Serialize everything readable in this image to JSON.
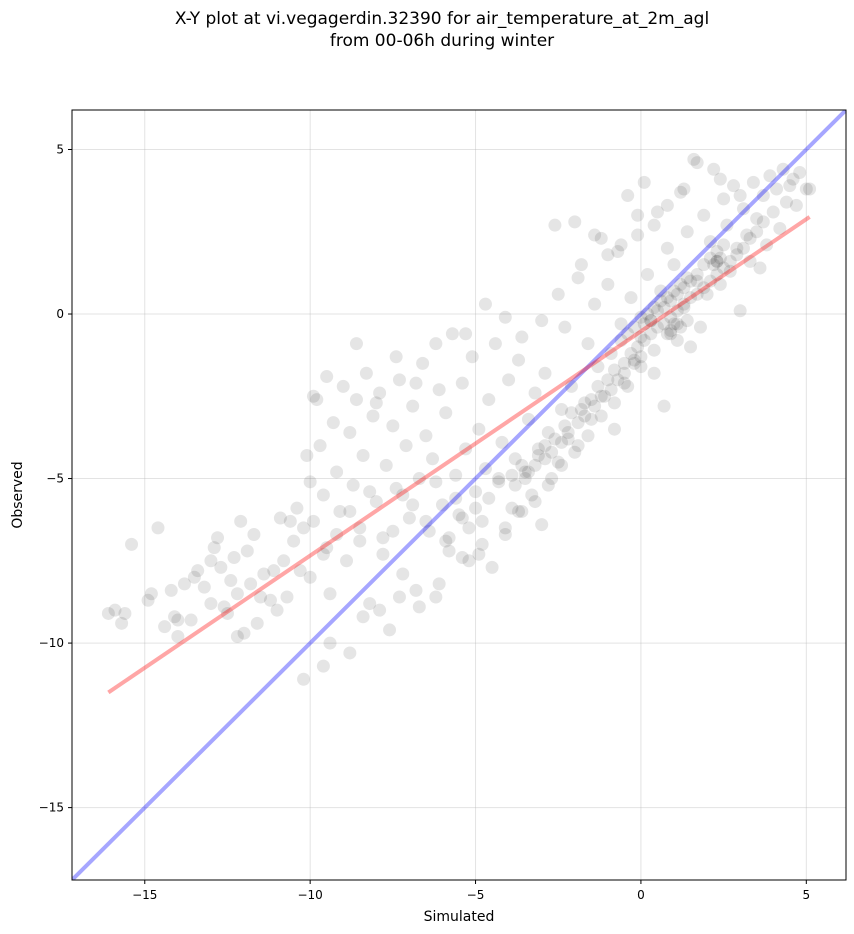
{
  "chart_data": {
    "type": "scatter",
    "title_line1": "X-Y plot at vi.vegagerdin.32390 for air_temperature_at_2m_agl",
    "title_line2": "from 00-06h during winter",
    "xlabel": "Simulated",
    "ylabel": "Observed",
    "xlim": [
      -17.2,
      6.2
    ],
    "ylim": [
      -17.2,
      6.2
    ],
    "xticks": [
      -15,
      -10,
      -5,
      0,
      5
    ],
    "yticks": [
      -15,
      -10,
      -5,
      0,
      5
    ],
    "xtick_labels": [
      "−15",
      "−10",
      "−5",
      "0",
      "5"
    ],
    "ytick_labels": [
      "−15",
      "−10",
      "−5",
      "0",
      "5"
    ],
    "grid": true,
    "point_color": "#000000",
    "identity_line": {
      "color": "#0000ff",
      "x": [
        -17.2,
        6.2
      ],
      "y": [
        -17.2,
        6.2
      ]
    },
    "fit_line": {
      "color": "#ff0000",
      "x": [
        -16.1,
        5.1
      ],
      "y": [
        -11.5,
        2.95
      ]
    },
    "points": [
      [
        -16.1,
        -9.1
      ],
      [
        -15.9,
        -9.0
      ],
      [
        -15.7,
        -9.4
      ],
      [
        -15.6,
        -9.1
      ],
      [
        -15.4,
        -7.0
      ],
      [
        -14.9,
        -8.7
      ],
      [
        -14.8,
        -8.5
      ],
      [
        -14.6,
        -6.5
      ],
      [
        -14.4,
        -9.5
      ],
      [
        -14.2,
        -8.4
      ],
      [
        -14.1,
        -9.2
      ],
      [
        -14.0,
        -9.3
      ],
      [
        -14.0,
        -9.8
      ],
      [
        -13.8,
        -8.2
      ],
      [
        -13.5,
        -8.0
      ],
      [
        -13.4,
        -7.8
      ],
      [
        -13.2,
        -8.3
      ],
      [
        -13.0,
        -7.5
      ],
      [
        -12.8,
        -6.8
      ],
      [
        -12.7,
        -7.7
      ],
      [
        -12.6,
        -8.9
      ],
      [
        -12.5,
        -9.1
      ],
      [
        -12.4,
        -8.1
      ],
      [
        -12.3,
        -7.4
      ],
      [
        -12.2,
        -8.5
      ],
      [
        -12.1,
        -6.3
      ],
      [
        -12.0,
        -9.7
      ],
      [
        -11.9,
        -7.2
      ],
      [
        -11.8,
        -8.2
      ],
      [
        -11.6,
        -9.4
      ],
      [
        -11.4,
        -7.9
      ],
      [
        -11.2,
        -8.7
      ],
      [
        -11.1,
        -7.8
      ],
      [
        -10.9,
        -6.2
      ],
      [
        -10.8,
        -7.5
      ],
      [
        -10.7,
        -8.6
      ],
      [
        -10.5,
        -6.9
      ],
      [
        -10.4,
        -5.9
      ],
      [
        -10.3,
        -7.8
      ],
      [
        -10.2,
        -6.5
      ],
      [
        -10.1,
        -4.3
      ],
      [
        -10.0,
        -5.1
      ],
      [
        -9.9,
        -6.3
      ],
      [
        -9.8,
        -2.6
      ],
      [
        -9.7,
        -4.0
      ],
      [
        -9.6,
        -5.5
      ],
      [
        -9.5,
        -7.1
      ],
      [
        -9.4,
        -8.5
      ],
      [
        -9.3,
        -3.3
      ],
      [
        -9.2,
        -4.8
      ],
      [
        -9.1,
        -6.0
      ],
      [
        -9.0,
        -2.2
      ],
      [
        -8.9,
        -7.5
      ],
      [
        -8.8,
        -3.6
      ],
      [
        -8.7,
        -5.2
      ],
      [
        -8.6,
        -2.6
      ],
      [
        -8.5,
        -6.5
      ],
      [
        -8.4,
        -4.3
      ],
      [
        -8.3,
        -1.8
      ],
      [
        -8.2,
        -8.8
      ],
      [
        -8.1,
        -3.1
      ],
      [
        -8.0,
        -5.7
      ],
      [
        -7.9,
        -2.4
      ],
      [
        -7.8,
        -6.8
      ],
      [
        -7.7,
        -4.6
      ],
      [
        -7.6,
        -9.6
      ],
      [
        -7.5,
        -3.4
      ],
      [
        -7.4,
        -5.3
      ],
      [
        -7.3,
        -2.0
      ],
      [
        -7.2,
        -7.9
      ],
      [
        -7.1,
        -4.0
      ],
      [
        -7.0,
        -6.2
      ],
      [
        -6.9,
        -2.8
      ],
      [
        -6.8,
        -8.4
      ],
      [
        -6.7,
        -5.0
      ],
      [
        -6.6,
        -1.5
      ],
      [
        -6.5,
        -3.7
      ],
      [
        -6.4,
        -6.6
      ],
      [
        -6.3,
        -4.4
      ],
      [
        -6.2,
        -8.6
      ],
      [
        -6.1,
        -2.3
      ],
      [
        -6.0,
        -5.8
      ],
      [
        -5.9,
        -3.0
      ],
      [
        -5.8,
        -7.2
      ],
      [
        -5.7,
        -0.6
      ],
      [
        -5.6,
        -4.9
      ],
      [
        -5.5,
        -6.1
      ],
      [
        -5.4,
        -2.1
      ],
      [
        -5.3,
        -4.1
      ],
      [
        -5.2,
        -7.5
      ],
      [
        -5.1,
        -1.3
      ],
      [
        -5.0,
        -5.4
      ],
      [
        -4.9,
        -3.5
      ],
      [
        -4.8,
        -6.3
      ],
      [
        -4.7,
        -4.7
      ],
      [
        -4.6,
        -2.6
      ],
      [
        -4.5,
        -7.7
      ],
      [
        -4.4,
        -0.9
      ],
      [
        -4.3,
        -5.1
      ],
      [
        -4.2,
        -3.9
      ],
      [
        -4.1,
        -6.7
      ],
      [
        -4.0,
        -2.0
      ],
      [
        -3.9,
        -5.9
      ],
      [
        -3.8,
        -4.4
      ],
      [
        -3.7,
        -1.4
      ],
      [
        -3.6,
        -6.0
      ],
      [
        -3.5,
        -4.8
      ],
      [
        -3.4,
        -3.2
      ],
      [
        -3.3,
        -5.5
      ],
      [
        -3.2,
        -2.4
      ],
      [
        -3.1,
        -4.1
      ],
      [
        -3.0,
        -6.4
      ],
      [
        -2.9,
        -1.8
      ],
      [
        -2.8,
        -3.6
      ],
      [
        -2.7,
        -5.0
      ],
      [
        -2.6,
        2.7
      ],
      [
        -2.5,
        -4.5
      ],
      [
        -2.4,
        -2.9
      ],
      [
        -2.3,
        -0.4
      ],
      [
        -2.2,
        -3.8
      ],
      [
        -2.1,
        -2.2
      ],
      [
        -2.0,
        2.8
      ],
      [
        -1.9,
        -4.0
      ],
      [
        -1.8,
        1.5
      ],
      [
        -1.7,
        -2.7
      ],
      [
        -1.6,
        -0.9
      ],
      [
        -1.5,
        -3.2
      ],
      [
        -1.4,
        0.3
      ],
      [
        -1.3,
        -1.6
      ],
      [
        -1.2,
        2.3
      ],
      [
        -1.1,
        -2.5
      ],
      [
        -1.0,
        0.9
      ],
      [
        -0.9,
        -1.2
      ],
      [
        -0.8,
        -3.5
      ],
      [
        -0.7,
        1.9
      ],
      [
        -0.6,
        -0.3
      ],
      [
        -0.5,
        -2.1
      ],
      [
        -0.4,
        3.6
      ],
      [
        -0.3,
        0.5
      ],
      [
        -0.2,
        -1.4
      ],
      [
        -0.1,
        2.4
      ],
      [
        0.0,
        -0.7
      ],
      [
        0.1,
        4.0
      ],
      [
        0.2,
        1.2
      ],
      [
        0.3,
        -0.2
      ],
      [
        0.4,
        -1.8
      ],
      [
        0.5,
        3.1
      ],
      [
        0.6,
        0.7
      ],
      [
        0.7,
        -2.8
      ],
      [
        0.8,
        2.0
      ],
      [
        0.9,
        -0.5
      ],
      [
        1.0,
        1.5
      ],
      [
        1.1,
        -0.3
      ],
      [
        1.2,
        3.7
      ],
      [
        1.3,
        0.2
      ],
      [
        1.4,
        2.5
      ],
      [
        1.5,
        -1.0
      ],
      [
        1.6,
        4.7
      ],
      [
        1.7,
        1.0
      ],
      [
        1.8,
        -0.4
      ],
      [
        1.9,
        3.0
      ],
      [
        2.0,
        0.6
      ],
      [
        2.1,
        2.2
      ],
      [
        2.2,
        4.4
      ],
      [
        2.3,
        1.6
      ],
      [
        2.4,
        0.9
      ],
      [
        2.5,
        3.5
      ],
      [
        2.6,
        2.7
      ],
      [
        2.7,
        1.3
      ],
      [
        2.8,
        3.9
      ],
      [
        2.9,
        2.0
      ],
      [
        3.0,
        0.1
      ],
      [
        3.1,
        3.2
      ],
      [
        3.2,
        2.4
      ],
      [
        3.3,
        1.6
      ],
      [
        3.4,
        4.0
      ],
      [
        3.5,
        2.9
      ],
      [
        3.6,
        1.4
      ],
      [
        3.7,
        3.6
      ],
      [
        3.8,
        2.1
      ],
      [
        3.9,
        4.2
      ],
      [
        4.0,
        3.1
      ],
      [
        4.1,
        3.8
      ],
      [
        4.2,
        2.6
      ],
      [
        4.3,
        4.4
      ],
      [
        4.4,
        3.4
      ],
      [
        4.5,
        3.9
      ],
      [
        4.6,
        4.1
      ],
      [
        4.7,
        3.3
      ],
      [
        4.8,
        4.3
      ],
      [
        5.0,
        3.8
      ],
      [
        5.1,
        3.8
      ],
      [
        -9.9,
        -2.5
      ],
      [
        -9.5,
        -1.9
      ],
      [
        -8.6,
        -0.9
      ],
      [
        -8.0,
        -2.7
      ],
      [
        -7.4,
        -1.3
      ],
      [
        -6.8,
        -2.1
      ],
      [
        -6.2,
        -0.9
      ],
      [
        -5.3,
        -0.6
      ],
      [
        -4.7,
        0.3
      ],
      [
        -4.1,
        -0.1
      ],
      [
        -3.6,
        -0.7
      ],
      [
        -3.0,
        -0.2
      ],
      [
        -2.5,
        0.6
      ],
      [
        -1.9,
        1.1
      ],
      [
        -1.4,
        2.4
      ],
      [
        -1.0,
        1.8
      ],
      [
        -0.6,
        2.1
      ],
      [
        -0.1,
        3.0
      ],
      [
        0.4,
        2.7
      ],
      [
        0.8,
        3.3
      ],
      [
        1.3,
        3.8
      ],
      [
        1.7,
        4.6
      ],
      [
        2.4,
        4.1
      ],
      [
        3.0,
        3.6
      ],
      [
        -10.2,
        -11.1
      ],
      [
        -9.6,
        -10.7
      ],
      [
        -9.4,
        -10.0
      ],
      [
        -8.8,
        -10.3
      ],
      [
        -8.4,
        -9.2
      ],
      [
        -7.9,
        -9.0
      ],
      [
        -7.3,
        -8.6
      ],
      [
        -6.7,
        -8.9
      ],
      [
        -6.1,
        -8.2
      ],
      [
        -5.4,
        -7.4
      ],
      [
        -4.8,
        -7.0
      ],
      [
        -4.1,
        -6.5
      ],
      [
        -3.7,
        -6.0
      ],
      [
        -3.2,
        -5.7
      ],
      [
        -2.8,
        -5.2
      ],
      [
        -2.4,
        -4.6
      ],
      [
        -2.0,
        -4.2
      ],
      [
        -1.6,
        -3.7
      ],
      [
        -1.2,
        -3.1
      ],
      [
        -0.8,
        -2.7
      ],
      [
        -0.4,
        -2.2
      ],
      [
        0.0,
        -1.6
      ],
      [
        0.4,
        -1.1
      ],
      [
        0.8,
        -0.6
      ],
      [
        -5.8,
        -6.8
      ],
      [
        -5.4,
        -6.2
      ],
      [
        -5.0,
        -5.9
      ],
      [
        -4.6,
        -5.6
      ],
      [
        -4.3,
        -5.0
      ],
      [
        -3.9,
        -4.9
      ],
      [
        -3.6,
        -4.6
      ],
      [
        -3.4,
        -4.8
      ],
      [
        -3.1,
        -4.3
      ],
      [
        -2.9,
        -4.0
      ],
      [
        -2.6,
        -3.8
      ],
      [
        -2.3,
        -3.4
      ],
      [
        -2.1,
        -3.0
      ],
      [
        -1.8,
        -2.9
      ],
      [
        -1.5,
        -2.6
      ],
      [
        -1.3,
        -2.2
      ],
      [
        -1.0,
        -2.0
      ],
      [
        -0.8,
        -1.7
      ],
      [
        -0.5,
        -1.5
      ],
      [
        -0.3,
        -1.2
      ],
      [
        -0.1,
        -1.0
      ],
      [
        0.1,
        -0.8
      ],
      [
        0.3,
        -0.6
      ],
      [
        0.5,
        -0.4
      ],
      [
        0.7,
        -0.3
      ],
      [
        0.9,
        -0.1
      ],
      [
        1.1,
        0.1
      ],
      [
        1.3,
        0.3
      ],
      [
        1.5,
        0.5
      ],
      [
        1.7,
        0.6
      ],
      [
        1.9,
        0.8
      ],
      [
        2.1,
        1.0
      ],
      [
        2.3,
        1.2
      ],
      [
        2.5,
        1.4
      ],
      [
        2.7,
        1.6
      ],
      [
        2.9,
        1.8
      ],
      [
        3.1,
        2.0
      ],
      [
        3.3,
        2.3
      ],
      [
        3.5,
        2.5
      ],
      [
        3.7,
        2.8
      ],
      [
        -0.2,
        -0.4
      ],
      [
        0.0,
        -0.1
      ],
      [
        0.2,
        0.0
      ],
      [
        0.4,
        0.2
      ],
      [
        0.6,
        0.4
      ],
      [
        0.8,
        0.5
      ],
      [
        1.0,
        0.7
      ],
      [
        1.2,
        0.9
      ],
      [
        1.4,
        1.1
      ],
      [
        -0.6,
        -0.8
      ],
      [
        -0.4,
        -0.6
      ],
      [
        0.1,
        -0.3
      ],
      [
        0.3,
        -0.2
      ],
      [
        0.5,
        0.1
      ],
      [
        0.7,
        0.2
      ],
      [
        0.9,
        0.4
      ],
      [
        1.1,
        0.6
      ],
      [
        1.3,
        0.8
      ],
      [
        1.5,
        1.0
      ],
      [
        1.7,
        1.2
      ],
      [
        1.9,
        1.5
      ],
      [
        2.1,
        1.7
      ],
      [
        2.3,
        1.9
      ],
      [
        2.5,
        2.1
      ],
      [
        -3.8,
        -5.2
      ],
      [
        -3.5,
        -5.0
      ],
      [
        -3.2,
        -4.6
      ],
      [
        -2.9,
        -4.4
      ],
      [
        -2.7,
        -4.2
      ],
      [
        -2.4,
        -3.9
      ],
      [
        -2.2,
        -3.6
      ],
      [
        -1.9,
        -3.3
      ],
      [
        -1.7,
        -3.1
      ],
      [
        -1.4,
        -2.8
      ],
      [
        -1.2,
        -2.5
      ],
      [
        -0.9,
        -2.3
      ],
      [
        -0.7,
        -2.0
      ],
      [
        -0.5,
        -1.8
      ],
      [
        -0.2,
        -1.5
      ],
      [
        0.0,
        -1.3
      ],
      [
        1.0,
        -0.3
      ],
      [
        1.2,
        -0.4
      ],
      [
        1.4,
        -0.2
      ],
      [
        0.9,
        -0.6
      ],
      [
        1.1,
        -0.8
      ],
      [
        2.3,
        1.6
      ],
      [
        2.4,
        1.7
      ],
      [
        2.2,
        1.5
      ],
      [
        -7.2,
        -5.5
      ],
      [
        -6.9,
        -5.8
      ],
      [
        -6.5,
        -6.3
      ],
      [
        -6.2,
        -5.1
      ],
      [
        -5.9,
        -6.9
      ],
      [
        -5.6,
        -5.6
      ],
      [
        -5.2,
        -6.5
      ],
      [
        -4.9,
        -7.3
      ],
      [
        -8.8,
        -6.0
      ],
      [
        -8.5,
        -6.9
      ],
      [
        -8.2,
        -5.4
      ],
      [
        -7.8,
        -7.3
      ],
      [
        -7.5,
        -6.6
      ],
      [
        -9.2,
        -6.7
      ],
      [
        -9.6,
        -7.3
      ],
      [
        -10.0,
        -8.0
      ],
      [
        -11.0,
        -9.0
      ],
      [
        -11.5,
        -8.6
      ],
      [
        -12.2,
        -9.8
      ],
      [
        -13.0,
        -8.8
      ],
      [
        -13.6,
        -9.3
      ],
      [
        -12.9,
        -7.1
      ],
      [
        -11.7,
        -6.7
      ],
      [
        -10.6,
        -6.3
      ]
    ]
  }
}
